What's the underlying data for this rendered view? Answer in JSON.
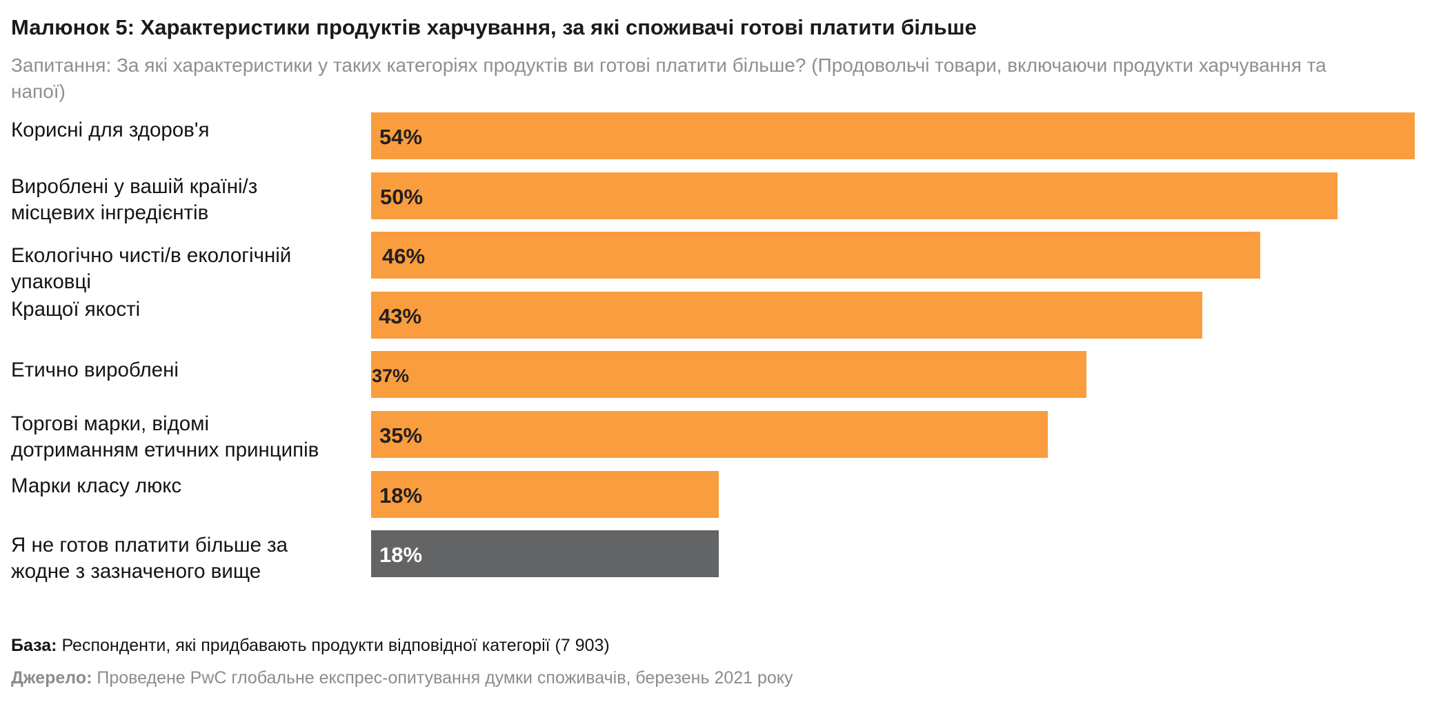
{
  "colors": {
    "bar": "#F99D3E",
    "bar_highlight": "#636466",
    "value_text_dark": "#231f20",
    "value_text_light": "#ffffff"
  },
  "chart_data": {
    "type": "bar",
    "orientation": "horizontal",
    "title": "Малюнок 5: Характеристики продуктів харчування, за які споживачі готові платити більше",
    "subtitle": "Запитання: За які характеристики у таких категоріях продуктів ви готові платити більше? (Продовольчі товари, включаючи продукти харчування та напої)",
    "xlabel": "",
    "ylabel": "",
    "xlim": [
      0,
      54
    ],
    "grid": false,
    "legend": "none",
    "unit": "%",
    "categories": [
      [
        "Корисні для здоров'я"
      ],
      [
        "Вироблені у вашій країні/з",
        "місцевих інгредієнтів"
      ],
      [
        "Екологічно чисті/в екологічній",
        "упаковці"
      ],
      [
        "Кращої якості"
      ],
      [
        "Етично вироблені"
      ],
      [
        "Торгові марки, відомі",
        "дотриманням етичних принципів"
      ],
      [
        "Марки класу люкс"
      ],
      [
        "Я не готов платити більше за",
        "жодне з зазначеного вище"
      ]
    ],
    "values": [
      54,
      50,
      46,
      43,
      37,
      35,
      18,
      18
    ],
    "data_labels": [
      "54%",
      "50%",
      "46%",
      "43%",
      "37%",
      "35%",
      "18%",
      "18%"
    ],
    "highlight": [
      false,
      false,
      false,
      false,
      false,
      false,
      false,
      true
    ]
  },
  "footer": {
    "base_key": "База:",
    "base_text": " Респонденти, які придбавають продукти відповідної категорії (7 903)",
    "source_key": "Джерело:",
    "source_text": " Проведене PwC глобальне експрес-опитування думки споживачів, березень 2021 року"
  }
}
